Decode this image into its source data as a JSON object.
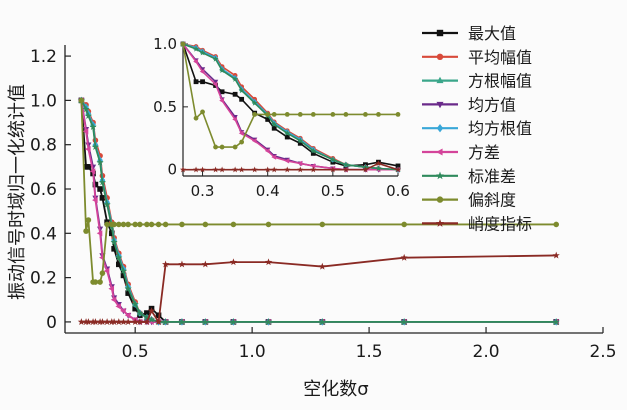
{
  "chart_data": {
    "type": "line",
    "xlabel": "空化数σ",
    "ylabel": "振动信号时域归一化统计值",
    "xlim": [
      0.2,
      2.5
    ],
    "ylim": [
      -0.05,
      1.25
    ],
    "xticks": [
      "0.5",
      "1.0",
      "1.5",
      "2.0",
      "2.5"
    ],
    "yticks": [
      "0",
      "0.2",
      "0.4",
      "0.6",
      "0.8",
      "1.0",
      "1.2"
    ],
    "legend_position": "right",
    "grid": false,
    "series": [
      {
        "name": "最大值",
        "color": "#111111",
        "marker": "square",
        "x": [
          0.27,
          0.29,
          0.3,
          0.32,
          0.33,
          0.35,
          0.36,
          0.38,
          0.4,
          0.41,
          0.43,
          0.45,
          0.47,
          0.5,
          0.52,
          0.55,
          0.57,
          0.6,
          0.63,
          0.7,
          0.8,
          0.92,
          1.07,
          1.3,
          1.65,
          2.3
        ],
        "y": [
          1.0,
          0.7,
          0.7,
          0.67,
          0.62,
          0.6,
          0.56,
          0.45,
          0.4,
          0.33,
          0.26,
          0.21,
          0.13,
          0.06,
          0.03,
          0.04,
          0.06,
          0.03,
          0.0,
          0.0,
          0.0,
          0.0,
          0.0,
          0.0,
          0.0,
          0.0
        ]
      },
      {
        "name": "平均幅值",
        "color": "#d84a3a",
        "marker": "dot",
        "x": [
          0.27,
          0.29,
          0.3,
          0.32,
          0.33,
          0.35,
          0.36,
          0.38,
          0.4,
          0.41,
          0.43,
          0.45,
          0.47,
          0.5,
          0.52,
          0.55,
          0.57,
          0.6,
          0.63,
          0.7,
          0.8,
          0.92,
          1.07,
          1.3,
          1.65,
          2.3
        ],
        "y": [
          1.0,
          0.98,
          0.95,
          0.9,
          0.82,
          0.75,
          0.66,
          0.56,
          0.45,
          0.38,
          0.31,
          0.25,
          0.17,
          0.09,
          0.04,
          0.02,
          0.01,
          0.0,
          0.0,
          0.0,
          0.0,
          0.0,
          0.0,
          0.0,
          0.0,
          0.0
        ]
      },
      {
        "name": "方根幅值",
        "color": "#3aa68a",
        "marker": "triangle",
        "x": [
          0.27,
          0.29,
          0.3,
          0.32,
          0.33,
          0.35,
          0.36,
          0.38,
          0.4,
          0.41,
          0.43,
          0.45,
          0.47,
          0.5,
          0.52,
          0.55,
          0.57,
          0.6,
          0.63,
          0.7,
          0.8,
          0.92,
          1.07,
          1.3,
          1.65,
          2.3
        ],
        "y": [
          1.0,
          0.97,
          0.94,
          0.89,
          0.8,
          0.73,
          0.64,
          0.54,
          0.44,
          0.37,
          0.3,
          0.24,
          0.16,
          0.08,
          0.04,
          0.02,
          0.01,
          0.0,
          0.0,
          0.0,
          0.0,
          0.0,
          0.0,
          0.0,
          0.0,
          0.0
        ]
      },
      {
        "name": "均方值",
        "color": "#6a2a8a",
        "marker": "triangle-down",
        "x": [
          0.27,
          0.29,
          0.3,
          0.32,
          0.33,
          0.35,
          0.36,
          0.38,
          0.4,
          0.41,
          0.43,
          0.45,
          0.47,
          0.5,
          0.52,
          0.55,
          0.57,
          0.6,
          0.63,
          0.7,
          0.8,
          0.92,
          1.07,
          1.3,
          1.65,
          2.3
        ],
        "y": [
          1.0,
          0.87,
          0.8,
          0.7,
          0.56,
          0.42,
          0.3,
          0.24,
          0.16,
          0.11,
          0.08,
          0.05,
          0.03,
          0.01,
          0.0,
          0.0,
          0.0,
          0.0,
          0.0,
          0.0,
          0.0,
          0.0,
          0.0,
          0.0,
          0.0,
          0.0
        ]
      },
      {
        "name": "均方根值",
        "color": "#39a7d8",
        "marker": "diamond",
        "x": [
          0.27,
          0.29,
          0.3,
          0.32,
          0.33,
          0.35,
          0.36,
          0.38,
          0.4,
          0.41,
          0.43,
          0.45,
          0.47,
          0.5,
          0.52,
          0.55,
          0.57,
          0.6,
          0.63,
          0.7,
          0.8,
          0.92,
          1.07,
          1.3,
          1.65,
          2.3
        ],
        "y": [
          1.0,
          0.97,
          0.94,
          0.89,
          0.8,
          0.73,
          0.64,
          0.54,
          0.44,
          0.37,
          0.3,
          0.24,
          0.16,
          0.08,
          0.04,
          0.02,
          0.01,
          0.0,
          0.0,
          0.0,
          0.0,
          0.0,
          0.0,
          0.0,
          0.0,
          0.0
        ]
      },
      {
        "name": "方差",
        "color": "#d4449a",
        "marker": "triangle-left",
        "x": [
          0.27,
          0.29,
          0.3,
          0.32,
          0.33,
          0.35,
          0.36,
          0.38,
          0.4,
          0.41,
          0.43,
          0.45,
          0.47,
          0.5,
          0.52,
          0.55,
          0.57,
          0.6,
          0.63,
          0.7,
          0.8,
          0.92,
          1.07,
          1.3,
          1.65,
          2.3
        ],
        "y": [
          1.0,
          0.86,
          0.78,
          0.68,
          0.55,
          0.4,
          0.29,
          0.23,
          0.15,
          0.1,
          0.07,
          0.05,
          0.03,
          0.01,
          0.0,
          0.0,
          0.0,
          0.0,
          0.0,
          0.0,
          0.0,
          0.0,
          0.0,
          0.0,
          0.0,
          0.0
        ]
      },
      {
        "name": "标准差",
        "color": "#2f8a5c",
        "marker": "star",
        "x": [
          0.27,
          0.29,
          0.3,
          0.32,
          0.33,
          0.35,
          0.36,
          0.38,
          0.4,
          0.41,
          0.43,
          0.45,
          0.47,
          0.5,
          0.52,
          0.55,
          0.57,
          0.6,
          0.63,
          0.7,
          0.8,
          0.92,
          1.07,
          1.3,
          1.65,
          2.3
        ],
        "y": [
          1.0,
          0.96,
          0.93,
          0.88,
          0.79,
          0.72,
          0.63,
          0.53,
          0.43,
          0.36,
          0.29,
          0.23,
          0.15,
          0.08,
          0.04,
          0.02,
          0.01,
          0.0,
          0.0,
          0.0,
          0.0,
          0.0,
          0.0,
          0.0,
          0.0,
          0.0
        ]
      },
      {
        "name": "偏斜度",
        "color": "#7d8b2e",
        "marker": "dot",
        "x": [
          0.27,
          0.29,
          0.3,
          0.32,
          0.33,
          0.35,
          0.36,
          0.38,
          0.4,
          0.41,
          0.43,
          0.45,
          0.47,
          0.5,
          0.52,
          0.55,
          0.57,
          0.6,
          0.63,
          0.7,
          0.8,
          0.92,
          1.07,
          1.3,
          1.65,
          2.3
        ],
        "y": [
          1.0,
          0.41,
          0.46,
          0.18,
          0.18,
          0.18,
          0.22,
          0.44,
          0.44,
          0.44,
          0.44,
          0.44,
          0.44,
          0.44,
          0.44,
          0.44,
          0.44,
          0.44,
          0.44,
          0.44,
          0.44,
          0.44,
          0.44,
          0.44,
          0.44,
          0.44
        ]
      },
      {
        "name": "峭度指标",
        "color": "#8a2a24",
        "marker": "star",
        "x": [
          0.27,
          0.29,
          0.3,
          0.32,
          0.33,
          0.35,
          0.36,
          0.38,
          0.4,
          0.41,
          0.43,
          0.45,
          0.47,
          0.5,
          0.52,
          0.55,
          0.57,
          0.6,
          0.63,
          0.7,
          0.8,
          0.92,
          1.07,
          1.3,
          1.65,
          2.3
        ],
        "y": [
          0.0,
          0.0,
          0.0,
          0.0,
          0.0,
          0.0,
          0.0,
          0.0,
          0.0,
          0.0,
          0.0,
          0.0,
          0.0,
          0.0,
          0.0,
          0.0,
          0.05,
          0.0,
          0.26,
          0.26,
          0.26,
          0.27,
          0.27,
          0.25,
          0.29,
          0.3
        ]
      }
    ],
    "inset": {
      "xlim": [
        0.27,
        0.6
      ],
      "ylim": [
        -0.05,
        1.0
      ],
      "xticks": [
        "0.3",
        "0.4",
        "0.5",
        "0.6"
      ],
      "yticks": [
        "0",
        "0.5",
        "1.0"
      ]
    }
  }
}
